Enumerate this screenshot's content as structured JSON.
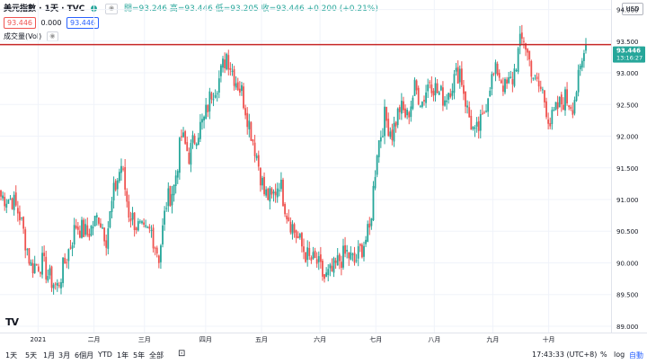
{
  "header": {
    "symbol": "美元指數 · 1天 · TVC",
    "ohlc": "開=93.246 高=93.446 低=93.205 收=93.446 +0.200 (+0.21%)",
    "pills": [
      "93.446",
      "0.000",
      "93.446"
    ],
    "volume_label": "成交量(Vol)",
    "currency": "USD",
    "logo": "TV"
  },
  "price_tag": {
    "price": "93.446",
    "countdown": "13:16:27"
  },
  "toolbar": {
    "ranges": [
      "1天",
      "5天",
      "1月",
      "3月",
      "6個月",
      "YTD",
      "1年",
      "5年",
      "全部"
    ],
    "clock": "17:43:33 (UTC+8)",
    "percent": "%",
    "log": "log",
    "auto": "自動"
  },
  "colors": {
    "up": "#26a69a",
    "down": "#ef5350",
    "hline": "#c62828",
    "tag": "#26a69a"
  },
  "chart_data": {
    "type": "candlestick",
    "title": "美元指數",
    "ylim": [
      88.9,
      94.15
    ],
    "y_ticks": [
      "94.000",
      "93.500",
      "93.000",
      "92.500",
      "92.000",
      "91.500",
      "91.000",
      "90.500",
      "90.000",
      "89.500",
      "89.000"
    ],
    "x_ticks": [
      "2021",
      "二月",
      "三月",
      "四月",
      "五月",
      "六月",
      "七月",
      "八月",
      "九月",
      "十月"
    ],
    "horizontal_line": 93.446,
    "last_price": 93.446,
    "anchors": [
      [
        0,
        91.05
      ],
      [
        6,
        91.0
      ],
      [
        10,
        90.75
      ],
      [
        16,
        89.95
      ],
      [
        22,
        90.0
      ],
      [
        26,
        89.75
      ],
      [
        30,
        89.62
      ],
      [
        36,
        90.2
      ],
      [
        40,
        90.6
      ],
      [
        46,
        90.45
      ],
      [
        52,
        90.75
      ],
      [
        56,
        90.4
      ],
      [
        60,
        91.1
      ],
      [
        64,
        91.55
      ],
      [
        68,
        90.8
      ],
      [
        72,
        90.6
      ],
      [
        76,
        90.45
      ],
      [
        80,
        90.5
      ],
      [
        84,
        90.1
      ],
      [
        88,
        90.95
      ],
      [
        92,
        91.2
      ],
      [
        96,
        92.0
      ],
      [
        100,
        91.7
      ],
      [
        104,
        92.05
      ],
      [
        108,
        92.25
      ],
      [
        112,
        92.7
      ],
      [
        116,
        92.9
      ],
      [
        120,
        93.3
      ],
      [
        124,
        92.95
      ],
      [
        128,
        92.7
      ],
      [
        132,
        92.2
      ],
      [
        136,
        91.7
      ],
      [
        140,
        91.1
      ],
      [
        144,
        91.0
      ],
      [
        148,
        91.3
      ],
      [
        152,
        90.8
      ],
      [
        156,
        90.5
      ],
      [
        160,
        90.25
      ],
      [
        164,
        90.05
      ],
      [
        168,
        90.0
      ],
      [
        172,
        89.75
      ],
      [
        176,
        89.85
      ],
      [
        180,
        90.05
      ],
      [
        184,
        90.15
      ],
      [
        188,
        90.0
      ],
      [
        192,
        90.25
      ],
      [
        196,
        90.5
      ],
      [
        200,
        91.8
      ],
      [
        204,
        92.3
      ],
      [
        208,
        92.05
      ],
      [
        212,
        92.45
      ],
      [
        216,
        92.3
      ],
      [
        220,
        92.75
      ],
      [
        224,
        92.55
      ],
      [
        228,
        92.9
      ],
      [
        232,
        92.7
      ],
      [
        236,
        92.6
      ],
      [
        240,
        92.85
      ],
      [
        244,
        93.05
      ],
      [
        248,
        92.4
      ],
      [
        252,
        92.0
      ],
      [
        256,
        92.25
      ],
      [
        260,
        92.85
      ],
      [
        264,
        93.05
      ],
      [
        268,
        92.75
      ],
      [
        272,
        92.9
      ],
      [
        276,
        93.45
      ],
      [
        278,
        93.55
      ],
      [
        280,
        93.3
      ],
      [
        284,
        92.85
      ],
      [
        288,
        92.7
      ],
      [
        292,
        92.2
      ],
      [
        296,
        92.45
      ],
      [
        300,
        92.6
      ],
      [
        304,
        92.5
      ],
      [
        308,
        93.0
      ],
      [
        311,
        93.446
      ]
    ]
  }
}
